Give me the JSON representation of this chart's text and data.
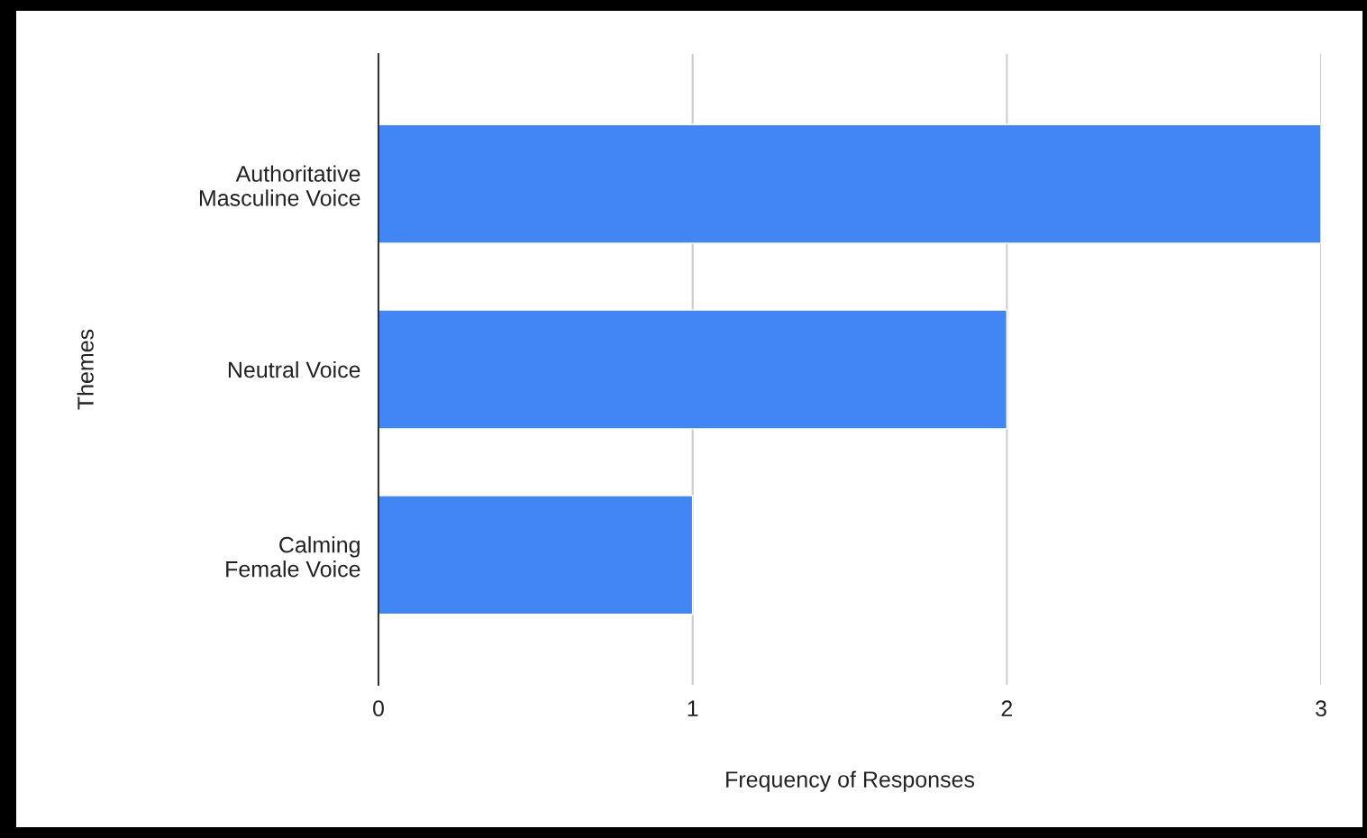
{
  "chart_data": {
    "type": "bar",
    "orientation": "horizontal",
    "categories": [
      "Authoritative Masculine Voice",
      "Neutral Voice",
      "Calming Female Voice"
    ],
    "values": [
      3,
      2,
      1
    ],
    "color": "#4285f4",
    "xlabel": "Frequency of Responses",
    "ylabel": "Themes",
    "xlim": [
      0,
      3
    ],
    "xticks": [
      0,
      1,
      2,
      3
    ],
    "grid": "x"
  }
}
